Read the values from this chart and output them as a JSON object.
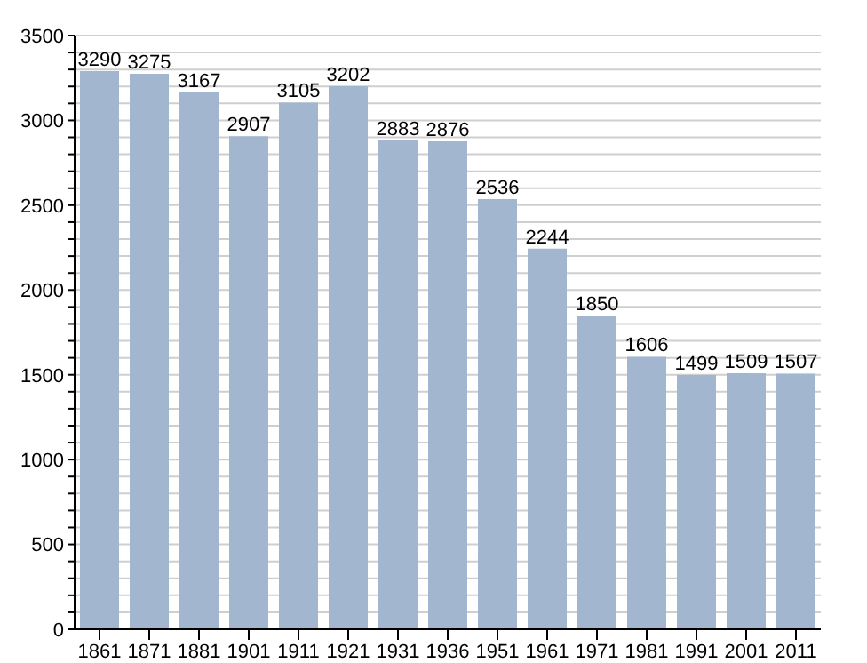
{
  "chart_data": {
    "type": "bar",
    "categories": [
      "1861",
      "1871",
      "1881",
      "1901",
      "1911",
      "1921",
      "1931",
      "1936",
      "1951",
      "1961",
      "1971",
      "1981",
      "1991",
      "2001",
      "2011"
    ],
    "values": [
      3290,
      3275,
      3167,
      2907,
      3105,
      3202,
      2883,
      2876,
      2536,
      2244,
      1850,
      1606,
      1499,
      1509,
      1507
    ],
    "color": "#a2b6cf",
    "data_labels": true,
    "ylim": [
      0,
      3500
    ],
    "yticks": [
      0,
      {
        "value": 100,
        "label": null
      },
      {
        "value": 200,
        "label": null
      },
      {
        "value": 300,
        "label": null
      },
      {
        "value": 400,
        "label": null
      },
      500,
      {
        "value": 600,
        "label": null
      },
      {
        "value": 700,
        "label": null
      },
      {
        "value": 800,
        "label": null
      },
      {
        "value": 900,
        "label": null
      },
      1000,
      {
        "value": 1100,
        "label": null
      },
      {
        "value": 1200,
        "label": null
      },
      {
        "value": 1300,
        "label": null
      },
      {
        "value": 1400,
        "label": null
      },
      1500,
      {
        "value": 1600,
        "label": null
      },
      {
        "value": 1700,
        "label": null
      },
      {
        "value": 1800,
        "label": null
      },
      {
        "value": 1900,
        "label": null
      },
      2000,
      {
        "value": 2100,
        "label": null
      },
      {
        "value": 2200,
        "label": null
      },
      {
        "value": 2300,
        "label": null
      },
      {
        "value": 2400,
        "label": null
      },
      2500,
      {
        "value": 2600,
        "label": null
      },
      {
        "value": 2700,
        "label": null
      },
      {
        "value": 2800,
        "label": null
      },
      {
        "value": 2900,
        "label": null
      },
      3000,
      {
        "value": 3100,
        "label": null
      },
      {
        "value": 3200,
        "label": null
      },
      {
        "value": 3300,
        "label": null
      },
      {
        "value": 3400,
        "label": null
      },
      3500
    ],
    "grid": "y"
  }
}
